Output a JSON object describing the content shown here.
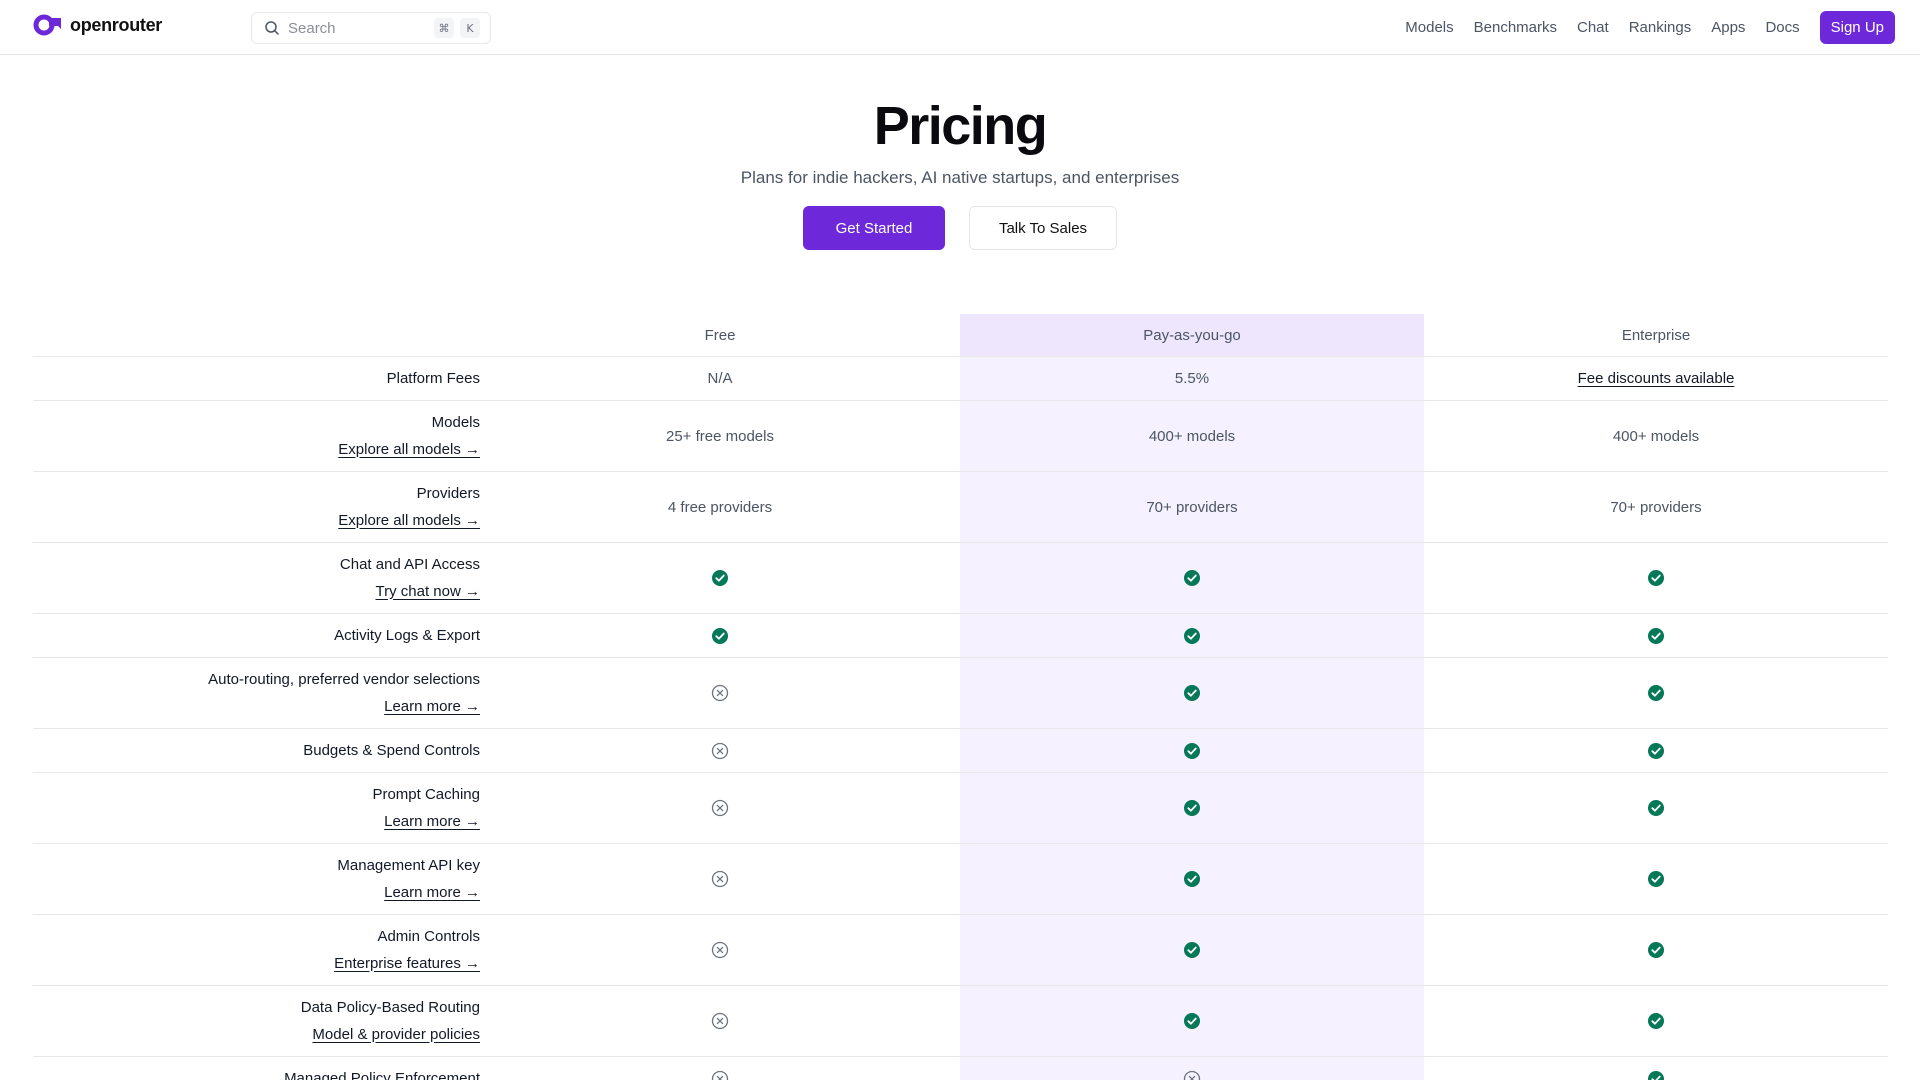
{
  "header": {
    "brand": "openrouter",
    "search_placeholder": "Search",
    "kbd_cmd": "⌘",
    "kbd_key": "K",
    "nav": [
      "Models",
      "Benchmarks",
      "Chat",
      "Rankings",
      "Apps",
      "Docs"
    ],
    "signup": "Sign Up"
  },
  "hero": {
    "title": "Pricing",
    "subtitle": "Plans for indie hackers, AI native startups, and enterprises",
    "primary_cta": "Get Started",
    "secondary_cta": "Talk To Sales"
  },
  "colors": {
    "accent": "#6d28d9",
    "check": "#047857",
    "highlight_column": "#f5f1fe"
  },
  "table": {
    "columns": [
      "Free",
      "Pay-as-you-go",
      "Enterprise"
    ],
    "rows": [
      {
        "feature": "Platform Fees",
        "link": "",
        "values": [
          "N/A",
          "5.5%",
          "Fee discounts available"
        ]
      },
      {
        "feature": "Models",
        "link": "Explore all models →",
        "values": [
          "25+ free models",
          "400+ models",
          "400+ models"
        ]
      },
      {
        "feature": "Providers",
        "link": "Explore all models →",
        "values": [
          "4 free providers",
          "70+ providers",
          "70+ providers"
        ]
      },
      {
        "feature": "Chat and API Access",
        "link": "Try chat now →",
        "values": [
          "check",
          "check",
          "check"
        ]
      },
      {
        "feature": "Activity Logs & Export",
        "link": "",
        "values": [
          "check",
          "check",
          "check"
        ]
      },
      {
        "feature": "Auto-routing, preferred vendor selections",
        "link": "Learn more →",
        "values": [
          "cross",
          "check",
          "check"
        ]
      },
      {
        "feature": "Budgets & Spend Controls",
        "link": "",
        "values": [
          "cross",
          "check",
          "check"
        ]
      },
      {
        "feature": "Prompt Caching",
        "link": "Learn more →",
        "values": [
          "cross",
          "check",
          "check"
        ]
      },
      {
        "feature": "Management API key",
        "link": "Learn more →",
        "values": [
          "cross",
          "check",
          "check"
        ]
      },
      {
        "feature": "Admin Controls",
        "link": "Enterprise features →",
        "values": [
          "cross",
          "check",
          "check"
        ]
      },
      {
        "feature": "Data Policy-Based Routing",
        "link": "Model & provider policies",
        "values": [
          "cross",
          "check",
          "check"
        ]
      },
      {
        "feature": "Managed Policy Enforcement",
        "link": "",
        "values": [
          "cross",
          "cross",
          "check"
        ]
      }
    ]
  }
}
